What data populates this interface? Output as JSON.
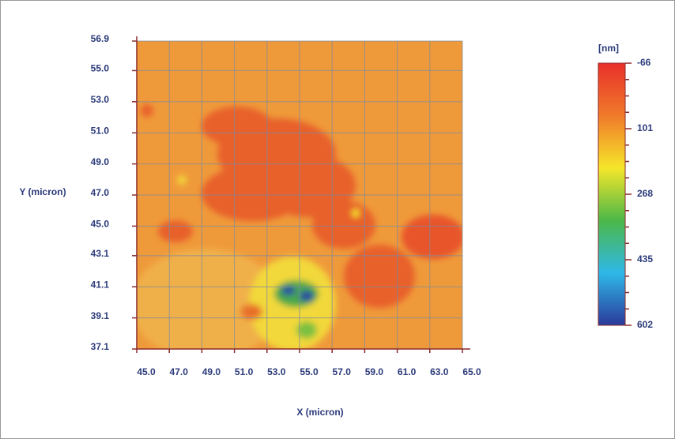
{
  "chart_data": {
    "type": "heatmap",
    "xlabel": "X (micron)",
    "ylabel": "Y (micron)",
    "xlim": [
      45,
      65
    ],
    "xticks": [
      {
        "value": 45,
        "label": "45.0"
      },
      {
        "value": 47,
        "label": "47.0"
      },
      {
        "value": 49,
        "label": "49.0"
      },
      {
        "value": 51,
        "label": "51.0"
      },
      {
        "value": 53,
        "label": "53.0"
      },
      {
        "value": 55,
        "label": "55.0"
      },
      {
        "value": 57,
        "label": "57.0"
      },
      {
        "value": 59,
        "label": "59.0"
      },
      {
        "value": 61,
        "label": "61.0"
      },
      {
        "value": 63,
        "label": "63.0"
      },
      {
        "value": 65,
        "label": "65.0"
      }
    ],
    "ylim": [
      37.1,
      56.9
    ],
    "yticks": [
      37.1,
      39.1,
      41.1,
      43.1,
      {
        "value": 45,
        "label": "45.0"
      },
      {
        "value": 47,
        "label": "47.0"
      },
      {
        "value": 49,
        "label": "49.0"
      },
      {
        "value": 51,
        "label": "51.0"
      },
      {
        "value": 53,
        "label": "53.0"
      },
      {
        "value": 55,
        "label": "55.0"
      },
      56.9
    ],
    "grid": true,
    "colorbar": {
      "label": "[nm]",
      "lim": [
        -66,
        602
      ],
      "ticks": [
        -66,
        101,
        268,
        435,
        602
      ],
      "colors": [
        "#e8302a",
        "#f07a2a",
        "#f5e62a",
        "#4cb848",
        "#2fb8e8",
        "#2a3a9a"
      ]
    }
  }
}
